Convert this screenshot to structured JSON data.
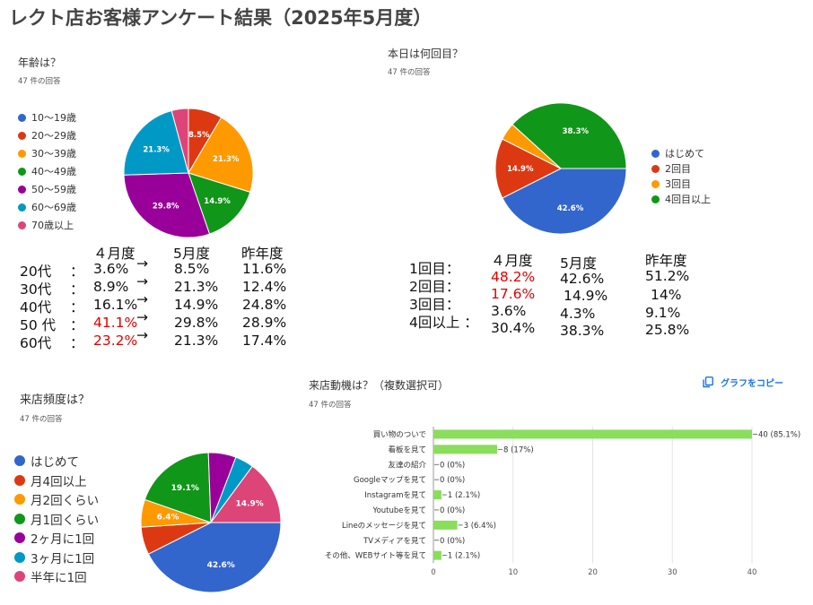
{
  "page_title": "レクト店お客様アンケート結果（2025年5月度）",
  "colors": {
    "blue": "#3366cc",
    "red": "#dc3912",
    "orange": "#ff9900",
    "green": "#109618",
    "purple": "#990099",
    "cyan": "#0099c6",
    "pink": "#dd4477",
    "bar": "#8bdd5c"
  },
  "age": {
    "title": "年齢は？",
    "count": "47 件の回答",
    "legend": [
      "10～19歳",
      "20～29歳",
      "30～39歳",
      "40～49歳",
      "50～59歳",
      "60～69歳",
      "70歳以上"
    ],
    "table": {
      "headers": [
        "４月度",
        "5月度",
        "昨年度"
      ],
      "rows": [
        {
          "label": "20代",
          "sep": "：",
          "apr": "3.6%",
          "arrow": "→",
          "may": "8.5%",
          "last": "11.6%"
        },
        {
          "label": "30代",
          "sep": "：",
          "apr": "8.9%",
          "arrow": "→",
          "may": "21.3%",
          "last": "12.4%"
        },
        {
          "label": "40代",
          "sep": "：",
          "apr": "16.1%",
          "arrow": "→",
          "may": "14.9%",
          "last": "24.8%"
        },
        {
          "label": "50 代",
          "sep": "：",
          "apr": "41.1%",
          "arrow": "→",
          "may": "29.8%",
          "last": "28.9%"
        },
        {
          "label": "60代",
          "sep": "：",
          "apr": "23.2%",
          "arrow": "→",
          "may": "21.3%",
          "last": "17.4%"
        }
      ]
    }
  },
  "visit": {
    "title": "本日は何回目？",
    "count": "47 件の回答",
    "legend": [
      "はじめて",
      "2回目",
      "3回目",
      "4回目以上"
    ],
    "table": {
      "headers": [
        "４月度",
        "5月度",
        "昨年度"
      ],
      "labels": [
        "1回目：",
        "2回目：",
        "3回目：",
        "4回以上 ："
      ],
      "apr": [
        "48.2%",
        "17.6%",
        "3.6%",
        "30.4%"
      ],
      "may": [
        "42.6%",
        "14.9%",
        "4.3%",
        "38.3%"
      ],
      "last": [
        "51.2%",
        "14%",
        "9.1%",
        "25.8%"
      ]
    }
  },
  "freq": {
    "title": "来店頻度は？",
    "count": "47 件の回答",
    "legend": [
      "はじめて",
      "月4回以上",
      "月2回くらい",
      "月1回くらい",
      "2ヶ月に1回",
      "3ヶ月に1回",
      "半年に1回"
    ]
  },
  "motive": {
    "title": "来店動機は？（複数選択可）",
    "count": "47 件の回答",
    "copy_label": "グラフをコピー"
  },
  "chart_data": [
    {
      "type": "pie",
      "title": "年齢は？",
      "categories": [
        "10～19歳",
        "20～29歳",
        "30～39歳",
        "40～49歳",
        "50～59歳",
        "60～69歳",
        "70歳以上"
      ],
      "values": [
        0,
        8.5,
        21.3,
        14.9,
        29.8,
        21.3,
        4.2
      ],
      "labels": [
        "",
        "8.5%",
        "21.3%",
        "14.9%",
        "29.8%",
        "21.3%",
        ""
      ],
      "legend_position": "left"
    },
    {
      "type": "pie",
      "title": "本日は何回目？",
      "categories": [
        "はじめて",
        "2回目",
        "3回目",
        "4回目以上"
      ],
      "values": [
        42.6,
        14.9,
        4.3,
        38.3
      ],
      "labels": [
        "42.6%",
        "14.9%",
        "",
        "38.3%"
      ],
      "legend_position": "right"
    },
    {
      "type": "pie",
      "title": "来店頻度は？",
      "categories": [
        "はじめて",
        "月4回以上",
        "月2回くらい",
        "月1回くらい",
        "2ヶ月に1回",
        "3ヶ月に1回",
        "半年に1回"
      ],
      "values": [
        42.6,
        6.4,
        6.4,
        19.1,
        6.4,
        4.3,
        14.9
      ],
      "labels": [
        "42.6%",
        "",
        "6.4%",
        "19.1%",
        "",
        "",
        "14.9%"
      ],
      "legend_position": "left"
    },
    {
      "type": "bar",
      "orientation": "horizontal",
      "title": "来店動機は？（複数選択可）",
      "categories": [
        "買い物のついで",
        "看板を見て",
        "友達の紹介",
        "Googleマップを見て",
        "Instagramを見て",
        "Youtubeを見て",
        "Lineのメッセージを見て",
        "TVメディアを見て",
        "その他、WEBサイト等を見て"
      ],
      "values": [
        40,
        8,
        0,
        0,
        1,
        0,
        3,
        0,
        1
      ],
      "value_labels": [
        "40 (85.1%)",
        "8 (17%)",
        "0 (0%)",
        "0 (0%)",
        "1 (2.1%)",
        "0 (0%)",
        "3 (6.4%)",
        "0 (0%)",
        "1 (2.1%)"
      ],
      "xlim": [
        0,
        40
      ],
      "xticks": [
        "0",
        "10",
        "20",
        "30",
        "40"
      ],
      "grid": true
    }
  ]
}
